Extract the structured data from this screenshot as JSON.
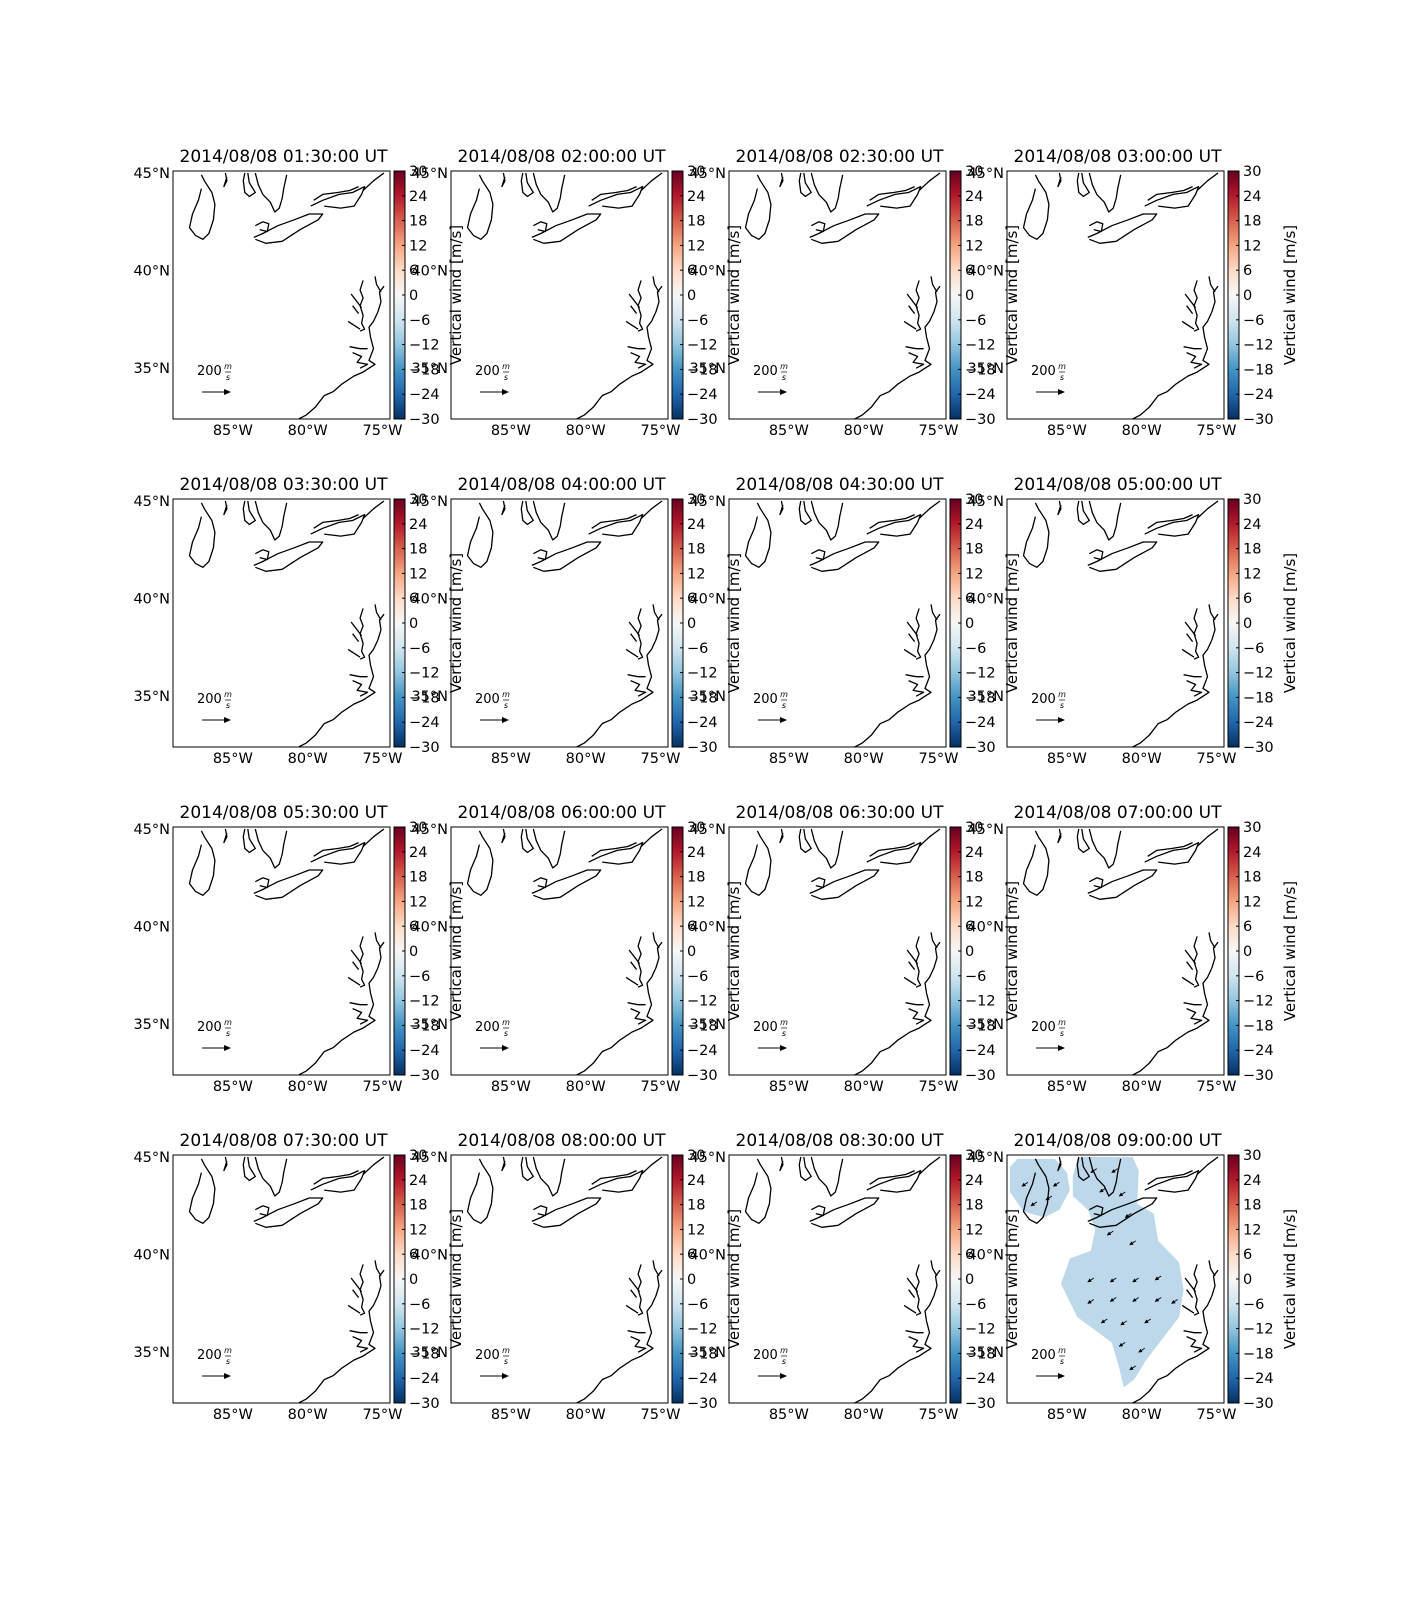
{
  "figure": {
    "panels": [
      {
        "title": "2014/08/08 01:30:00 UT",
        "has_data": false
      },
      {
        "title": "2014/08/08 02:00:00 UT",
        "has_data": false
      },
      {
        "title": "2014/08/08 02:30:00 UT",
        "has_data": false
      },
      {
        "title": "2014/08/08 03:00:00 UT",
        "has_data": false
      },
      {
        "title": "2014/08/08 03:30:00 UT",
        "has_data": false
      },
      {
        "title": "2014/08/08 04:00:00 UT",
        "has_data": false
      },
      {
        "title": "2014/08/08 04:30:00 UT",
        "has_data": false
      },
      {
        "title": "2014/08/08 05:00:00 UT",
        "has_data": false
      },
      {
        "title": "2014/08/08 05:30:00 UT",
        "has_data": false
      },
      {
        "title": "2014/08/08 06:00:00 UT",
        "has_data": false
      },
      {
        "title": "2014/08/08 06:30:00 UT",
        "has_data": false
      },
      {
        "title": "2014/08/08 07:00:00 UT",
        "has_data": false
      },
      {
        "title": "2014/08/08 07:30:00 UT",
        "has_data": false
      },
      {
        "title": "2014/08/08 08:00:00 UT",
        "has_data": false
      },
      {
        "title": "2014/08/08 08:30:00 UT",
        "has_data": false
      },
      {
        "title": "2014/08/08 09:00:00 UT",
        "has_data": true
      }
    ],
    "lat_ticks": [
      "45°N",
      "40°N",
      "35°N"
    ],
    "lon_ticks": [
      "85°W",
      "80°W",
      "75°W"
    ],
    "colorbar": {
      "label": "Vertical wind [m/s]",
      "ticks": [
        "30",
        "24",
        "18",
        "12",
        "6",
        "0",
        "−6",
        "−12",
        "−18",
        "−24",
        "−30"
      ],
      "min": -30,
      "max": 30,
      "colormap": "RdBu_r",
      "colors": [
        "#053061",
        "#2166ac",
        "#4393c3",
        "#92c5de",
        "#d1e5f0",
        "#f7f7f7",
        "#fddbc7",
        "#f4a582",
        "#d6604d",
        "#b2182b",
        "#67001f"
      ]
    },
    "quiver_key": {
      "value": "200",
      "unit_numerator": "m",
      "unit_denominator": "s"
    },
    "data_fill_color": "#bcd8ea",
    "data_value_approx": -10,
    "map_extent": {
      "lon": [
        -89,
        -74.5
      ],
      "lat": [
        32.4,
        45.1
      ]
    }
  }
}
